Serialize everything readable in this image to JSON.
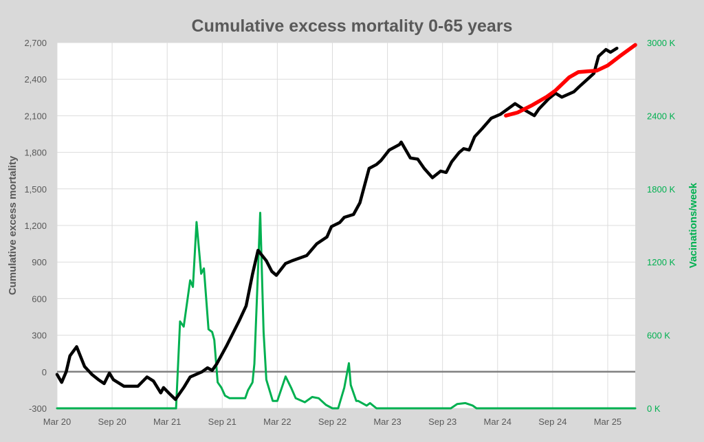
{
  "chart_data": {
    "type": "line",
    "title": "Cumulative excess mortality 0-65 years",
    "xlabel": "",
    "ylabel": "Cumulative excess mortality",
    "y2label": "Vacinations/week",
    "xlim": [
      "2020-03-01",
      "2025-06-01"
    ],
    "ylim": [
      -300,
      2700
    ],
    "y2lim": [
      0,
      3000
    ],
    "grid": true,
    "x_ticks": [
      {
        "date": "2020-03-01",
        "label": "Mar 20"
      },
      {
        "date": "2020-09-01",
        "label": "Sep 20"
      },
      {
        "date": "2021-03-01",
        "label": "Mar 21"
      },
      {
        "date": "2021-09-01",
        "label": "Sep 21"
      },
      {
        "date": "2022-03-01",
        "label": "Mar 22"
      },
      {
        "date": "2022-09-01",
        "label": "Sep 22"
      },
      {
        "date": "2023-03-01",
        "label": "Mar 23"
      },
      {
        "date": "2023-09-01",
        "label": "Sep 23"
      },
      {
        "date": "2024-03-01",
        "label": "Mar 24"
      },
      {
        "date": "2024-09-01",
        "label": "Sep 24"
      },
      {
        "date": "2025-03-01",
        "label": "Mar 25"
      }
    ],
    "y_ticks": [
      {
        "value": -300,
        "label": "-300"
      },
      {
        "value": 0,
        "label": "0"
      },
      {
        "value": 300,
        "label": "300"
      },
      {
        "value": 600,
        "label": "600"
      },
      {
        "value": 900,
        "label": "900"
      },
      {
        "value": 1200,
        "label": "1,200"
      },
      {
        "value": 1500,
        "label": "1,500"
      },
      {
        "value": 1800,
        "label": "1,800"
      },
      {
        "value": 2100,
        "label": "2,100"
      },
      {
        "value": 2400,
        "label": "2,400"
      },
      {
        "value": 2700,
        "label": "2,700"
      }
    ],
    "y2_ticks": [
      {
        "value": 0,
        "label": "0 K"
      },
      {
        "value": 600,
        "label": "600 K"
      },
      {
        "value": 1200,
        "label": "1200 K"
      },
      {
        "value": 1800,
        "label": "1800 K"
      },
      {
        "value": 2400,
        "label": "2400 K"
      },
      {
        "value": 3000,
        "label": "3000 K"
      }
    ],
    "colors": {
      "excess": "#000000",
      "trend": "#ff0000",
      "vaccinations": "#00b050",
      "zero_line": "#808080",
      "background": "#d9d9d9",
      "title": "#595959"
    },
    "series": [
      {
        "axis": "left",
        "color": "#000000",
        "points": [
          [
            "2020-03-01",
            -22
          ],
          [
            "2020-03-16",
            -87
          ],
          [
            "2020-04-01",
            0
          ],
          [
            "2020-04-13",
            130
          ],
          [
            "2020-05-05",
            205
          ],
          [
            "2020-06-01",
            43
          ],
          [
            "2020-06-25",
            -22
          ],
          [
            "2020-07-16",
            -65
          ],
          [
            "2020-08-05",
            -97
          ],
          [
            "2020-08-22",
            -11
          ],
          [
            "2020-09-05",
            -65
          ],
          [
            "2020-10-10",
            -119
          ],
          [
            "2020-11-25",
            -119
          ],
          [
            "2020-12-25",
            -43
          ],
          [
            "2021-01-16",
            -76
          ],
          [
            "2021-02-10",
            -173
          ],
          [
            "2021-02-19",
            -130
          ],
          [
            "2021-03-10",
            -184
          ],
          [
            "2021-03-28",
            -227
          ],
          [
            "2021-04-25",
            -130
          ],
          [
            "2021-05-16",
            -43
          ],
          [
            "2021-06-25",
            0
          ],
          [
            "2021-07-13",
            32
          ],
          [
            "2021-07-28",
            11
          ],
          [
            "2021-08-13",
            65
          ],
          [
            "2021-09-16",
            217
          ],
          [
            "2021-10-25",
            411
          ],
          [
            "2021-11-19",
            541
          ],
          [
            "2021-12-10",
            801
          ],
          [
            "2021-12-28",
            996
          ],
          [
            "2022-01-25",
            910
          ],
          [
            "2022-02-13",
            823
          ],
          [
            "2022-02-28",
            791
          ],
          [
            "2022-03-28",
            888
          ],
          [
            "2022-04-19",
            910
          ],
          [
            "2022-06-07",
            953
          ],
          [
            "2022-07-10",
            1050
          ],
          [
            "2022-08-13",
            1105
          ],
          [
            "2022-08-28",
            1191
          ],
          [
            "2022-09-25",
            1224
          ],
          [
            "2022-10-10",
            1267
          ],
          [
            "2022-11-10",
            1290
          ],
          [
            "2022-12-01",
            1386
          ],
          [
            "2023-01-01",
            1668
          ],
          [
            "2023-01-25",
            1700
          ],
          [
            "2023-02-10",
            1733
          ],
          [
            "2023-03-07",
            1819
          ],
          [
            "2023-04-10",
            1863
          ],
          [
            "2023-04-16",
            1884
          ],
          [
            "2023-05-16",
            1754
          ],
          [
            "2023-06-10",
            1744
          ],
          [
            "2023-07-01",
            1668
          ],
          [
            "2023-07-28",
            1592
          ],
          [
            "2023-08-25",
            1646
          ],
          [
            "2023-09-13",
            1635
          ],
          [
            "2023-10-01",
            1722
          ],
          [
            "2023-10-25",
            1798
          ],
          [
            "2023-11-10",
            1830
          ],
          [
            "2023-11-28",
            1819
          ],
          [
            "2023-12-16",
            1928
          ],
          [
            "2024-01-10",
            1993
          ],
          [
            "2024-02-10",
            2079
          ],
          [
            "2024-03-10",
            2112
          ],
          [
            "2024-04-10",
            2166
          ],
          [
            "2024-04-28",
            2199
          ],
          [
            "2024-06-01",
            2145
          ],
          [
            "2024-07-01",
            2101
          ],
          [
            "2024-07-16",
            2155
          ],
          [
            "2024-08-19",
            2242
          ],
          [
            "2024-09-10",
            2285
          ],
          [
            "2024-10-01",
            2253
          ],
          [
            "2024-11-10",
            2296
          ],
          [
            "2024-11-28",
            2339
          ],
          [
            "2024-12-22",
            2393
          ],
          [
            "2025-01-16",
            2448
          ],
          [
            "2025-02-01",
            2588
          ],
          [
            "2025-02-25",
            2643
          ],
          [
            "2025-03-10",
            2621
          ],
          [
            "2025-04-01",
            2654
          ]
        ]
      },
      {
        "axis": "left",
        "color": "#ff0000",
        "points": [
          [
            "2024-03-28",
            2101
          ],
          [
            "2024-05-07",
            2127
          ],
          [
            "2024-06-25",
            2188
          ],
          [
            "2024-08-10",
            2253
          ],
          [
            "2024-09-10",
            2307
          ],
          [
            "2024-10-25",
            2415
          ],
          [
            "2024-11-25",
            2458
          ],
          [
            "2024-12-25",
            2465
          ],
          [
            "2025-01-25",
            2470
          ],
          [
            "2025-03-01",
            2513
          ],
          [
            "2025-04-10",
            2588
          ],
          [
            "2025-06-01",
            2681
          ]
        ]
      },
      {
        "axis": "right",
        "color": "#00b050",
        "points": [
          [
            "2020-03-01",
            0
          ],
          [
            "2021-03-30",
            0
          ],
          [
            "2021-04-13",
            713
          ],
          [
            "2021-04-25",
            670
          ],
          [
            "2021-05-16",
            1050
          ],
          [
            "2021-05-25",
            996
          ],
          [
            "2021-06-07",
            1528
          ],
          [
            "2021-06-22",
            1104
          ],
          [
            "2021-07-01",
            1148
          ],
          [
            "2021-07-16",
            648
          ],
          [
            "2021-07-28",
            626
          ],
          [
            "2021-08-05",
            561
          ],
          [
            "2021-08-16",
            213
          ],
          [
            "2021-08-28",
            170
          ],
          [
            "2021-09-10",
            104
          ],
          [
            "2021-09-25",
            83
          ],
          [
            "2021-10-25",
            83
          ],
          [
            "2021-11-16",
            83
          ],
          [
            "2021-11-25",
            148
          ],
          [
            "2021-12-10",
            213
          ],
          [
            "2021-12-16",
            365
          ],
          [
            "2022-01-05",
            1604
          ],
          [
            "2022-01-16",
            626
          ],
          [
            "2022-01-25",
            235
          ],
          [
            "2022-02-16",
            61
          ],
          [
            "2022-03-01",
            61
          ],
          [
            "2022-03-28",
            261
          ],
          [
            "2022-04-16",
            170
          ],
          [
            "2022-05-01",
            83
          ],
          [
            "2022-06-01",
            50
          ],
          [
            "2022-06-25",
            93
          ],
          [
            "2022-07-16",
            83
          ],
          [
            "2022-08-10",
            28
          ],
          [
            "2022-09-01",
            0
          ],
          [
            "2022-09-20",
            0
          ],
          [
            "2022-10-10",
            170
          ],
          [
            "2022-10-25",
            370
          ],
          [
            "2022-11-01",
            191
          ],
          [
            "2022-11-19",
            61
          ],
          [
            "2022-11-25",
            61
          ],
          [
            "2022-12-23",
            22
          ],
          [
            "2023-01-04",
            43
          ],
          [
            "2023-01-25",
            0
          ],
          [
            "2023-09-28",
            0
          ],
          [
            "2023-10-19",
            35
          ],
          [
            "2023-11-16",
            43
          ],
          [
            "2023-12-10",
            22
          ],
          [
            "2023-12-22",
            0
          ],
          [
            "2025-06-01",
            0
          ]
        ]
      }
    ]
  }
}
